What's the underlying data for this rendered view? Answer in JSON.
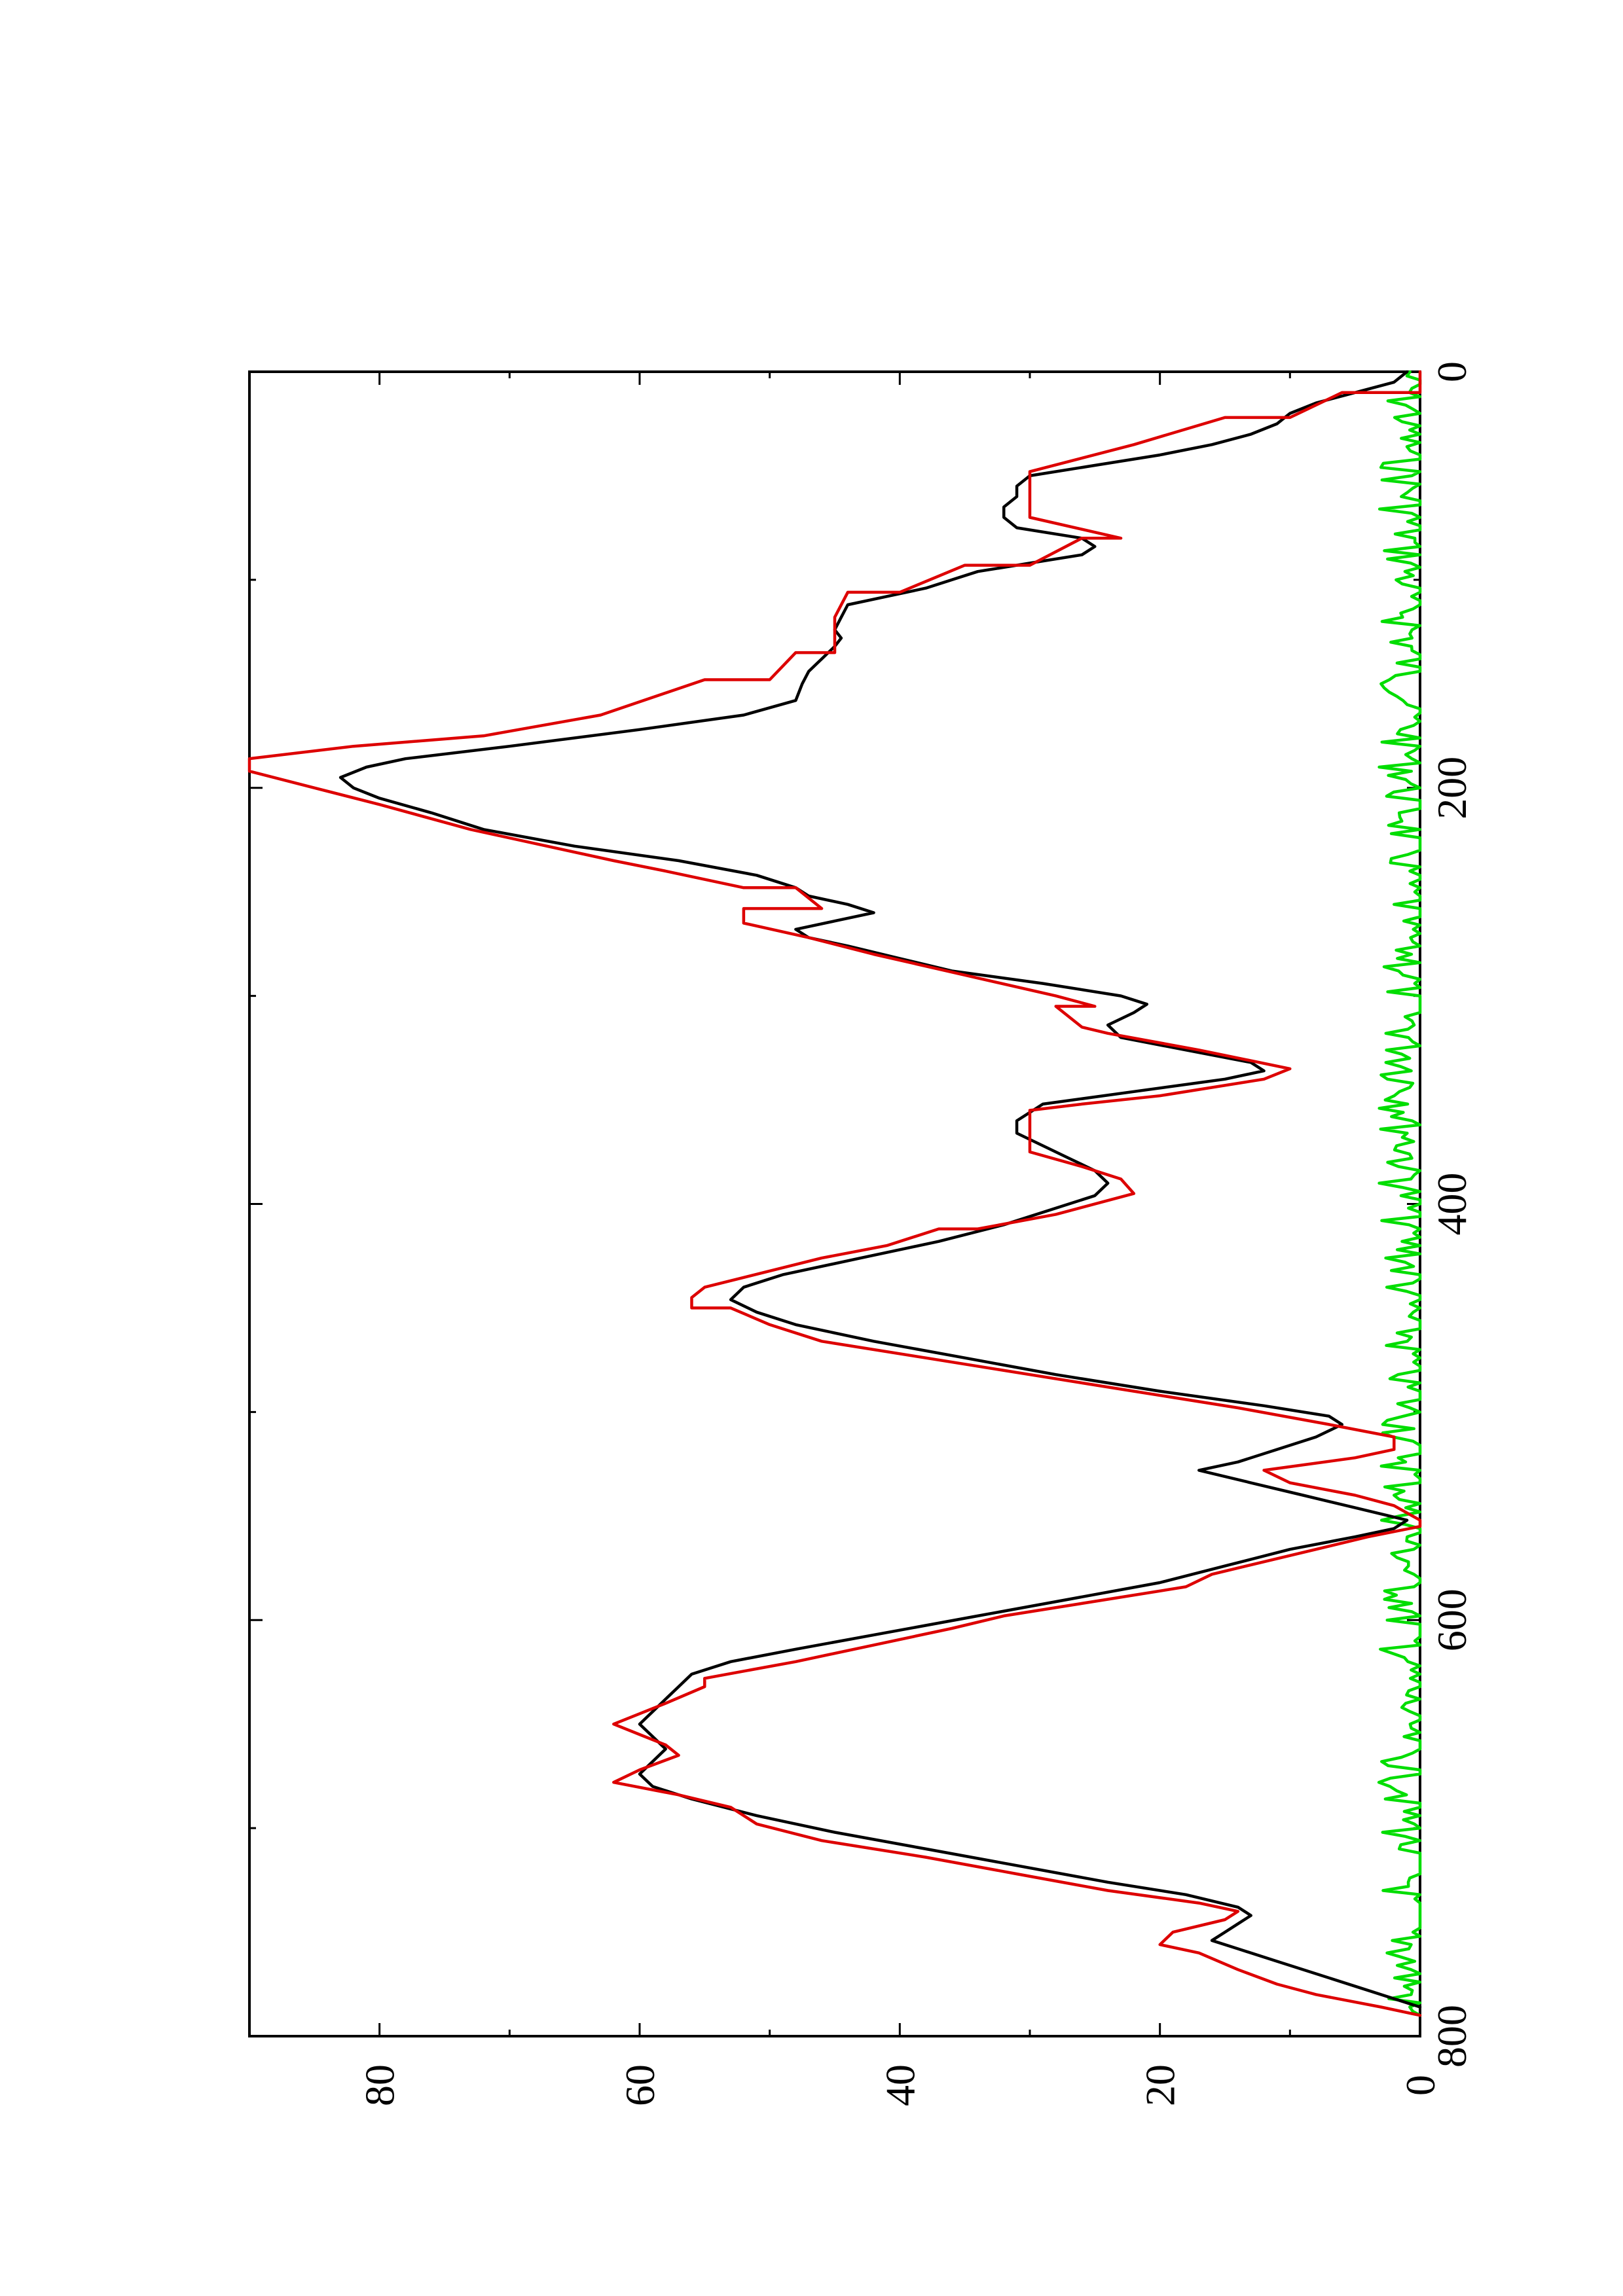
{
  "chart_data": {
    "type": "line",
    "orientation": "rotated-90-ccw",
    "title": "",
    "xlabel": "",
    "ylabel": "",
    "xlim": [
      0,
      800
    ],
    "ylim": [
      0,
      90
    ],
    "x_ticks": [
      0,
      200,
      400,
      600,
      800
    ],
    "y_ticks": [
      0,
      20,
      40,
      60,
      80
    ],
    "x_minor_ticks": [
      100,
      300,
      500,
      700
    ],
    "y_minor_ticks": [
      10,
      30,
      50,
      70
    ],
    "grid": false,
    "legend": "none",
    "series": [
      {
        "color": "#000000",
        "points": [
          [
            0,
            1
          ],
          [
            5,
            2
          ],
          [
            10,
            5
          ],
          [
            15,
            8
          ],
          [
            20,
            10
          ],
          [
            25,
            11
          ],
          [
            30,
            13
          ],
          [
            35,
            16
          ],
          [
            40,
            20
          ],
          [
            45,
            25
          ],
          [
            50,
            30
          ],
          [
            55,
            31
          ],
          [
            60,
            31
          ],
          [
            65,
            32
          ],
          [
            70,
            32
          ],
          [
            75,
            31
          ],
          [
            80,
            26
          ],
          [
            84,
            25
          ],
          [
            88,
            26
          ],
          [
            92,
            30
          ],
          [
            96,
            34
          ],
          [
            100,
            36
          ],
          [
            104,
            38
          ],
          [
            108,
            41
          ],
          [
            112,
            44
          ],
          [
            118,
            44.5
          ],
          [
            124,
            45
          ],
          [
            128,
            44.5
          ],
          [
            132,
            45
          ],
          [
            138,
            46
          ],
          [
            144,
            47
          ],
          [
            150,
            47.5
          ],
          [
            158,
            48
          ],
          [
            165,
            52
          ],
          [
            172,
            60
          ],
          [
            180,
            70
          ],
          [
            186,
            78
          ],
          [
            190,
            81
          ],
          [
            195,
            83
          ],
          [
            200,
            82
          ],
          [
            205,
            80
          ],
          [
            212,
            76
          ],
          [
            220,
            72
          ],
          [
            228,
            65
          ],
          [
            235,
            57
          ],
          [
            242,
            51
          ],
          [
            248,
            48
          ],
          [
            252,
            47
          ],
          [
            256,
            44
          ],
          [
            260,
            42
          ],
          [
            264,
            45
          ],
          [
            268,
            48
          ],
          [
            272,
            47
          ],
          [
            276,
            44
          ],
          [
            282,
            40
          ],
          [
            288,
            36
          ],
          [
            294,
            29
          ],
          [
            300,
            23
          ],
          [
            304,
            21
          ],
          [
            308,
            22
          ],
          [
            314,
            24
          ],
          [
            320,
            23
          ],
          [
            326,
            18
          ],
          [
            332,
            13
          ],
          [
            336,
            12
          ],
          [
            340,
            15
          ],
          [
            346,
            22
          ],
          [
            352,
            29
          ],
          [
            360,
            31
          ],
          [
            366,
            31
          ],
          [
            372,
            29
          ],
          [
            378,
            27
          ],
          [
            384,
            25
          ],
          [
            390,
            24
          ],
          [
            396,
            25
          ],
          [
            402,
            28
          ],
          [
            410,
            32
          ],
          [
            418,
            37
          ],
          [
            426,
            43
          ],
          [
            434,
            49
          ],
          [
            440,
            52
          ],
          [
            446,
            53
          ],
          [
            452,
            51
          ],
          [
            458,
            48
          ],
          [
            466,
            42
          ],
          [
            474,
            35
          ],
          [
            482,
            28
          ],
          [
            490,
            20
          ],
          [
            497,
            12
          ],
          [
            502,
            7
          ],
          [
            506,
            6
          ],
          [
            512,
            8
          ],
          [
            518,
            11
          ],
          [
            524,
            14
          ],
          [
            528,
            17
          ],
          [
            534,
            13
          ],
          [
            540,
            9
          ],
          [
            546,
            5
          ],
          [
            552,
            1
          ],
          [
            556,
            2
          ],
          [
            560,
            5
          ],
          [
            566,
            10
          ],
          [
            574,
            15
          ],
          [
            582,
            20
          ],
          [
            590,
            27
          ],
          [
            598,
            34
          ],
          [
            606,
            41
          ],
          [
            614,
            48
          ],
          [
            620,
            53
          ],
          [
            626,
            56
          ],
          [
            632,
            57
          ],
          [
            638,
            58
          ],
          [
            644,
            59
          ],
          [
            650,
            60
          ],
          [
            656,
            59
          ],
          [
            662,
            58
          ],
          [
            668,
            59
          ],
          [
            674,
            60
          ],
          [
            680,
            59
          ],
          [
            686,
            56
          ],
          [
            694,
            51
          ],
          [
            702,
            45
          ],
          [
            710,
            38
          ],
          [
            718,
            31
          ],
          [
            726,
            24
          ],
          [
            732,
            18
          ],
          [
            738,
            14
          ],
          [
            742,
            13
          ],
          [
            746,
            14
          ],
          [
            750,
            15
          ],
          [
            754,
            16
          ],
          [
            758,
            14
          ],
          [
            764,
            11
          ],
          [
            770,
            8
          ],
          [
            776,
            5
          ],
          [
            782,
            2
          ],
          [
            786,
            0
          ]
        ]
      },
      {
        "color": "#dd0000",
        "points": [
          [
            0,
            0
          ],
          [
            10,
            0
          ],
          [
            10,
            6
          ],
          [
            22,
            10
          ],
          [
            22,
            15
          ],
          [
            35,
            22
          ],
          [
            48,
            30
          ],
          [
            48,
            30
          ],
          [
            70,
            30
          ],
          [
            70,
            30
          ],
          [
            80,
            23
          ],
          [
            80,
            26
          ],
          [
            93,
            30
          ],
          [
            93,
            35
          ],
          [
            106,
            40
          ],
          [
            106,
            44
          ],
          [
            118,
            45
          ],
          [
            135,
            45
          ],
          [
            135,
            48
          ],
          [
            148,
            50
          ],
          [
            148,
            55
          ],
          [
            165,
            63
          ],
          [
            175,
            72
          ],
          [
            180,
            82
          ],
          [
            186,
            90
          ],
          [
            192,
            90
          ],
          [
            200,
            85
          ],
          [
            208,
            80
          ],
          [
            220,
            73
          ],
          [
            235,
            62
          ],
          [
            240,
            58
          ],
          [
            248,
            52
          ],
          [
            248,
            48
          ],
          [
            258,
            46
          ],
          [
            258,
            52
          ],
          [
            265,
            52
          ],
          [
            272,
            47
          ],
          [
            280,
            42
          ],
          [
            290,
            35
          ],
          [
            300,
            28
          ],
          [
            305,
            25
          ],
          [
            305,
            28
          ],
          [
            315,
            26
          ],
          [
            318,
            24
          ],
          [
            326,
            17
          ],
          [
            335,
            10
          ],
          [
            340,
            12
          ],
          [
            348,
            20
          ],
          [
            352,
            26
          ],
          [
            355,
            30
          ],
          [
            358,
            30
          ],
          [
            368,
            30
          ],
          [
            375,
            30
          ],
          [
            382,
            26
          ],
          [
            388,
            23
          ],
          [
            395,
            22
          ],
          [
            395,
            22
          ],
          [
            405,
            28
          ],
          [
            412,
            34
          ],
          [
            412,
            37
          ],
          [
            420,
            41
          ],
          [
            426,
            46
          ],
          [
            440,
            55
          ],
          [
            445,
            56
          ],
          [
            450,
            56
          ],
          [
            450,
            53
          ],
          [
            458,
            50
          ],
          [
            466,
            46
          ],
          [
            474,
            38
          ],
          [
            482,
            30
          ],
          [
            490,
            22
          ],
          [
            498,
            14
          ],
          [
            506,
            7
          ],
          [
            512,
            2
          ],
          [
            518,
            2
          ],
          [
            522,
            5
          ],
          [
            528,
            12
          ],
          [
            534,
            10
          ],
          [
            540,
            5
          ],
          [
            545,
            2
          ],
          [
            552,
            0
          ],
          [
            555,
            0
          ],
          [
            560,
            4
          ],
          [
            566,
            8
          ],
          [
            572,
            12
          ],
          [
            578,
            16
          ],
          [
            584,
            18
          ],
          [
            590,
            24
          ],
          [
            598,
            32
          ],
          [
            604,
            36
          ],
          [
            612,
            42
          ],
          [
            620,
            48
          ],
          [
            628,
            55
          ],
          [
            632,
            55
          ],
          [
            640,
            58
          ],
          [
            650,
            62
          ],
          [
            655,
            60
          ],
          [
            660,
            58
          ],
          [
            665,
            57
          ],
          [
            672,
            60
          ],
          [
            678,
            62
          ],
          [
            684,
            57
          ],
          [
            690,
            53
          ],
          [
            698,
            51
          ],
          [
            706,
            46
          ],
          [
            714,
            38
          ],
          [
            722,
            31
          ],
          [
            730,
            24
          ],
          [
            736,
            17
          ],
          [
            740,
            14
          ],
          [
            744,
            15
          ],
          [
            750,
            19
          ],
          [
            756,
            20
          ],
          [
            760,
            17
          ],
          [
            768,
            14
          ],
          [
            775,
            11
          ],
          [
            780,
            8
          ],
          [
            786,
            3
          ],
          [
            790,
            0
          ]
        ]
      },
      {
        "color": "#00dd00",
        "points": "noise-baseline"
      }
    ]
  },
  "colors": {
    "frame": "#000000",
    "background": "#ffffff"
  }
}
